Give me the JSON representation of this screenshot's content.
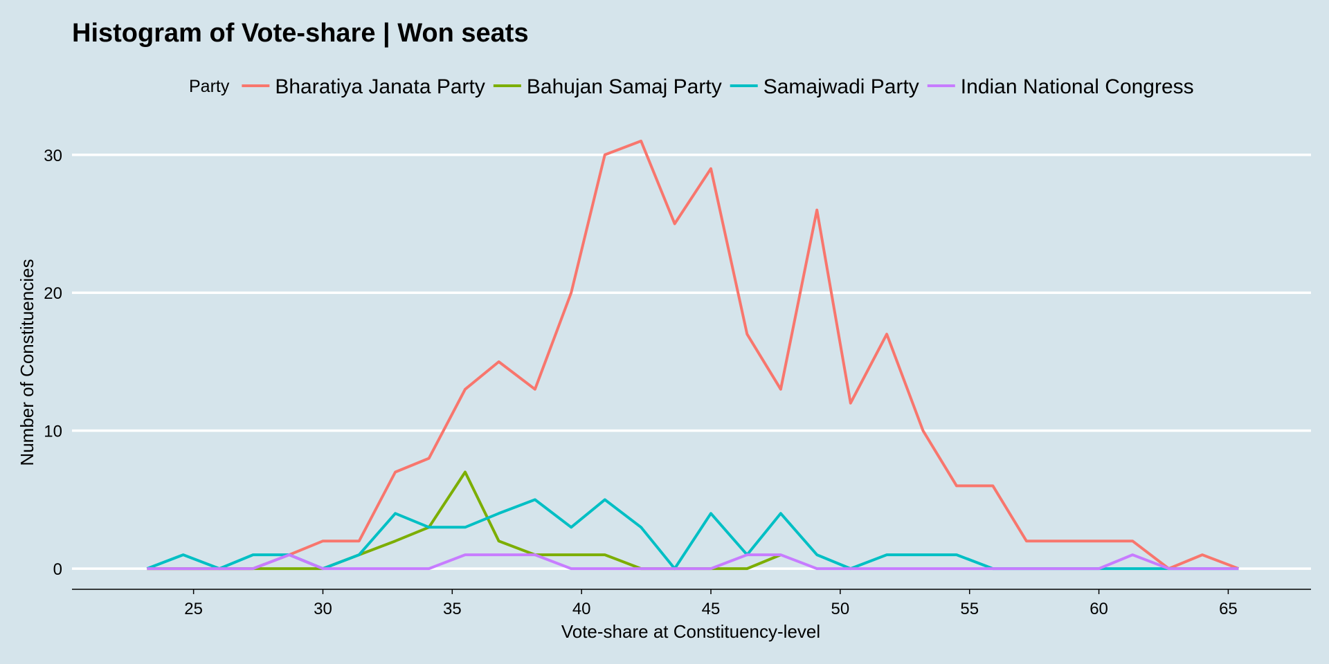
{
  "chart_data": {
    "type": "line",
    "title": "Histogram of Vote-share |  Won seats",
    "xlabel": "Vote-share at Constituency-level",
    "ylabel": "Number of Constituencies",
    "legend_title": "Party",
    "legend_position": "top",
    "grid": "horizontal major gridlines only",
    "xlim": [
      20.3,
      68.2
    ],
    "ylim": [
      -1.5,
      33
    ],
    "x_ticks": [
      25,
      30,
      35,
      40,
      45,
      50,
      55,
      60,
      65
    ],
    "y_ticks": [
      0,
      10,
      20,
      30
    ],
    "x": [
      23.2,
      24.6,
      26.0,
      27.3,
      28.7,
      30.0,
      31.4,
      32.8,
      34.1,
      35.5,
      36.8,
      38.2,
      39.6,
      40.9,
      42.3,
      43.6,
      45.0,
      46.4,
      47.7,
      49.1,
      50.4,
      51.8,
      53.2,
      54.5,
      55.9,
      57.2,
      58.6,
      60.0,
      61.3,
      62.7,
      64.0,
      65.4
    ],
    "series": [
      {
        "name": "Bharatiya Janata Party",
        "color": "#f8766d",
        "values": [
          0,
          0,
          0,
          0,
          1,
          2,
          2,
          7,
          8,
          13,
          15,
          13,
          20,
          30,
          31,
          25,
          29,
          17,
          13,
          26,
          12,
          17,
          10,
          6,
          6,
          2,
          2,
          2,
          2,
          0,
          1,
          0
        ]
      },
      {
        "name": "Bahujan Samaj Party",
        "color": "#7cae00",
        "values": [
          0,
          0,
          0,
          0,
          0,
          0,
          1,
          2,
          3,
          7,
          2,
          1,
          1,
          1,
          0,
          0,
          0,
          0,
          1,
          null,
          null,
          null,
          null,
          null,
          null,
          null,
          null,
          null,
          null,
          null,
          null,
          null
        ]
      },
      {
        "name": "Samajwadi Party",
        "color": "#00bfc4",
        "values": [
          0,
          1,
          0,
          1,
          1,
          0,
          1,
          4,
          3,
          3,
          4,
          5,
          3,
          5,
          3,
          0,
          4,
          1,
          4,
          1,
          0,
          1,
          1,
          1,
          0,
          0,
          0,
          0,
          0,
          0,
          0,
          0
        ]
      },
      {
        "name": "Indian National Congress",
        "color": "#c77cff",
        "values": [
          0,
          0,
          0,
          0,
          1,
          0,
          0,
          0,
          0,
          1,
          1,
          1,
          0,
          0,
          0,
          0,
          0,
          1,
          1,
          0,
          0,
          0,
          0,
          0,
          0,
          0,
          0,
          0,
          1,
          0,
          0,
          0
        ]
      }
    ]
  }
}
